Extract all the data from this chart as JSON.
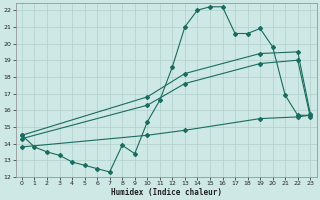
{
  "background_color": "#cde8e5",
  "grid_color": "#b0d0cc",
  "line_color": "#1a6b60",
  "xlabel": "Humidex (Indice chaleur)",
  "xlim": [
    -0.5,
    23.5
  ],
  "ylim": [
    12,
    22.4
  ],
  "xticks": [
    0,
    1,
    2,
    3,
    4,
    5,
    6,
    7,
    8,
    9,
    10,
    11,
    12,
    13,
    14,
    15,
    16,
    17,
    18,
    19,
    20,
    21,
    22,
    23
  ],
  "yticks": [
    12,
    13,
    14,
    15,
    16,
    17,
    18,
    19,
    20,
    21,
    22
  ],
  "series1_x": [
    0,
    1,
    2,
    3,
    4,
    5,
    6,
    7,
    8,
    9,
    10,
    11,
    12,
    13,
    14,
    15,
    16,
    17,
    18,
    19,
    20,
    21,
    22,
    23
  ],
  "series1_y": [
    14.5,
    13.8,
    13.5,
    13.3,
    12.9,
    12.7,
    12.5,
    12.3,
    13.9,
    13.4,
    15.3,
    16.6,
    18.6,
    21.0,
    22.0,
    22.2,
    22.2,
    20.6,
    20.6,
    20.9,
    19.8,
    16.9,
    15.7,
    15.7
  ],
  "series2_x": [
    0,
    10,
    13,
    19,
    22,
    23
  ],
  "series2_y": [
    14.5,
    16.8,
    18.2,
    19.4,
    19.5,
    15.8
  ],
  "series3_x": [
    0,
    10,
    13,
    19,
    22,
    23
  ],
  "series3_y": [
    14.3,
    16.3,
    17.6,
    18.8,
    19.0,
    15.6
  ],
  "series4_x": [
    0,
    10,
    13,
    19,
    22,
    23
  ],
  "series4_y": [
    13.8,
    14.5,
    14.8,
    15.5,
    15.6,
    15.7
  ]
}
